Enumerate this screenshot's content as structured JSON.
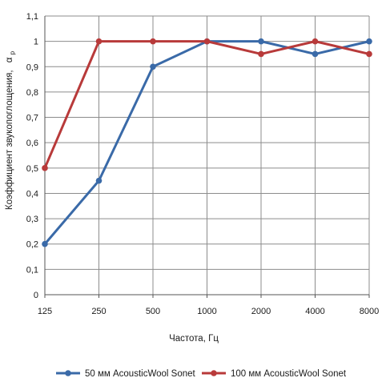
{
  "chart_data": {
    "type": "line",
    "title": "",
    "xlabel": "Частота, Гц",
    "ylabel": "Коэффициент звукопоглощения,",
    "ylabel_symbol": "α",
    "ylabel_subscript": "р",
    "categories": [
      "125",
      "250",
      "500",
      "1000",
      "2000",
      "4000",
      "8000"
    ],
    "ylim": [
      0,
      1.1
    ],
    "yticks": [
      "0",
      "0,1",
      "0,2",
      "0,3",
      "0,4",
      "0,5",
      "0,6",
      "0,7",
      "0,8",
      "0,9",
      "1",
      "1,1"
    ],
    "grid": true,
    "legend_position": "bottom",
    "series": [
      {
        "name": "50 мм AcousticWool Sonet",
        "color": "#3a6aa8",
        "values": [
          0.2,
          0.45,
          0.9,
          1.0,
          1.0,
          0.95,
          1.0
        ]
      },
      {
        "name": "100 мм AcousticWool Sonet",
        "color": "#b83a3a",
        "values": [
          0.5,
          1.0,
          1.0,
          1.0,
          0.95,
          1.0,
          0.95
        ]
      }
    ]
  }
}
